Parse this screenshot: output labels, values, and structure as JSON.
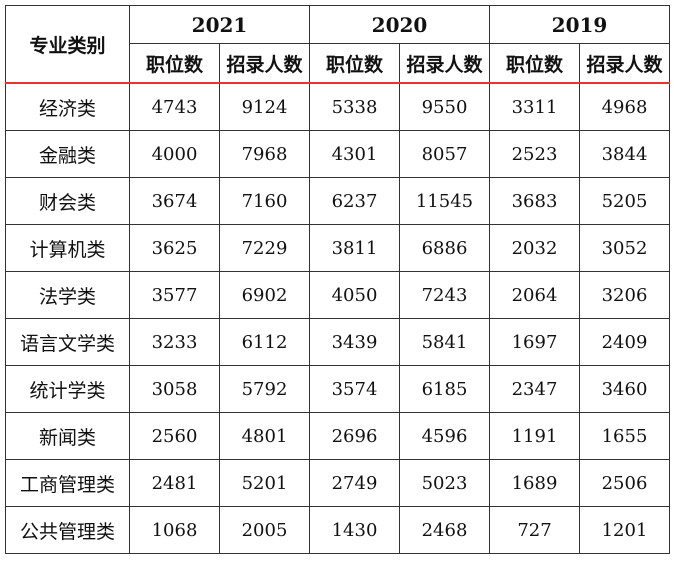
{
  "table": {
    "category_header": "专业类别",
    "years": [
      "2021",
      "2020",
      "2019"
    ],
    "sub_headers": [
      "职位数",
      "招录人数"
    ],
    "rows": [
      {
        "name": "经济类",
        "values": [
          "4743",
          "9124",
          "5338",
          "9550",
          "3311",
          "4968"
        ]
      },
      {
        "name": "金融类",
        "values": [
          "4000",
          "7968",
          "4301",
          "8057",
          "2523",
          "3844"
        ]
      },
      {
        "name": "财会类",
        "values": [
          "3674",
          "7160",
          "6237",
          "11545",
          "3683",
          "5205"
        ]
      },
      {
        "name": "计算机类",
        "values": [
          "3625",
          "7229",
          "3811",
          "6886",
          "2032",
          "3052"
        ]
      },
      {
        "name": "法学类",
        "values": [
          "3577",
          "6902",
          "4050",
          "7243",
          "2064",
          "3206"
        ]
      },
      {
        "name": "语言文学类",
        "values": [
          "3233",
          "6112",
          "3439",
          "5841",
          "1697",
          "2409"
        ]
      },
      {
        "name": "统计学类",
        "values": [
          "3058",
          "5792",
          "3574",
          "6185",
          "2347",
          "3460"
        ]
      },
      {
        "name": "新闻类",
        "values": [
          "2560",
          "4801",
          "2696",
          "4596",
          "1191",
          "1655"
        ]
      },
      {
        "name": "工商管理类",
        "values": [
          "2481",
          "5201",
          "2749",
          "5023",
          "1689",
          "2506"
        ]
      },
      {
        "name": "公共管理类",
        "values": [
          "1068",
          "2005",
          "1430",
          "2468",
          "727",
          "1201"
        ]
      }
    ]
  }
}
